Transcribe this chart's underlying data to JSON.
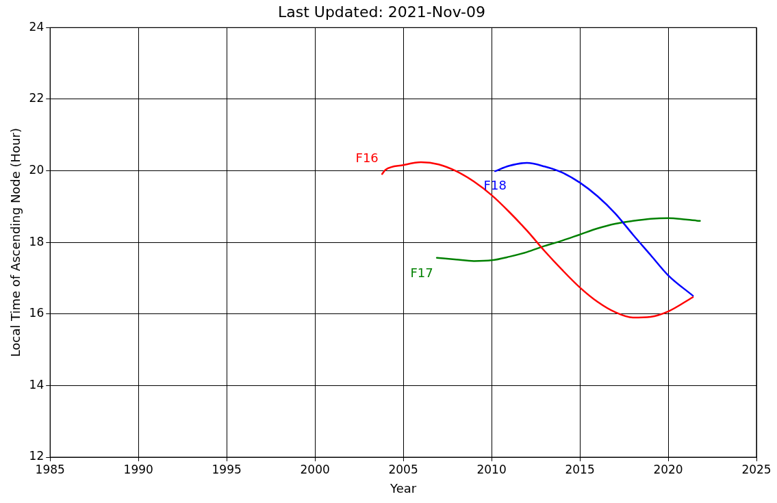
{
  "chart_data": {
    "type": "line",
    "title": "Last Updated: 2021-Nov-09",
    "xlabel": "Year",
    "ylabel": "Local Time of Ascending Node (Hour)",
    "xlim": [
      1985,
      2025
    ],
    "xticks": [
      1985,
      1990,
      1995,
      2000,
      2005,
      2010,
      2015,
      2020,
      2025
    ],
    "ylim": [
      12,
      24
    ],
    "yticks": [
      12,
      14,
      16,
      18,
      20,
      22,
      24
    ],
    "grid": true,
    "legend": false,
    "marker": "none",
    "line_style": "solid",
    "series": [
      {
        "name": "F16",
        "color": "#ff0000",
        "x": [
          2003.8,
          2004,
          2005,
          2006,
          2007,
          2008,
          2009,
          2010,
          2011,
          2012,
          2013,
          2014,
          2015,
          2016,
          2017,
          2018,
          2019,
          2020,
          2021.4
        ],
        "values": [
          19.91,
          20.03,
          20.16,
          20.24,
          20.18,
          19.99,
          19.7,
          19.32,
          18.85,
          18.33,
          17.76,
          17.23,
          16.74,
          16.34,
          16.05,
          15.9,
          15.92,
          16.07,
          16.47
        ]
      },
      {
        "name": "F18",
        "color": "#0000ff",
        "x": [
          2010.2,
          2011,
          2012,
          2013,
          2014,
          2015,
          2016,
          2017,
          2018,
          2019,
          2020,
          2021.4
        ],
        "values": [
          19.99,
          20.14,
          20.22,
          20.12,
          19.95,
          19.67,
          19.29,
          18.81,
          18.22,
          17.65,
          17.08,
          16.51
        ]
      },
      {
        "name": "F17",
        "color": "#008000",
        "x": [
          2006.9,
          2008,
          2009,
          2010,
          2011,
          2012,
          2013,
          2014,
          2015,
          2016,
          2017,
          2018,
          2019,
          2020,
          2021,
          2021.8
        ],
        "values": [
          17.57,
          17.52,
          17.48,
          17.5,
          17.6,
          17.73,
          17.9,
          18.05,
          18.22,
          18.39,
          18.52,
          18.6,
          18.66,
          18.68,
          18.64,
          18.6
        ]
      }
    ]
  }
}
